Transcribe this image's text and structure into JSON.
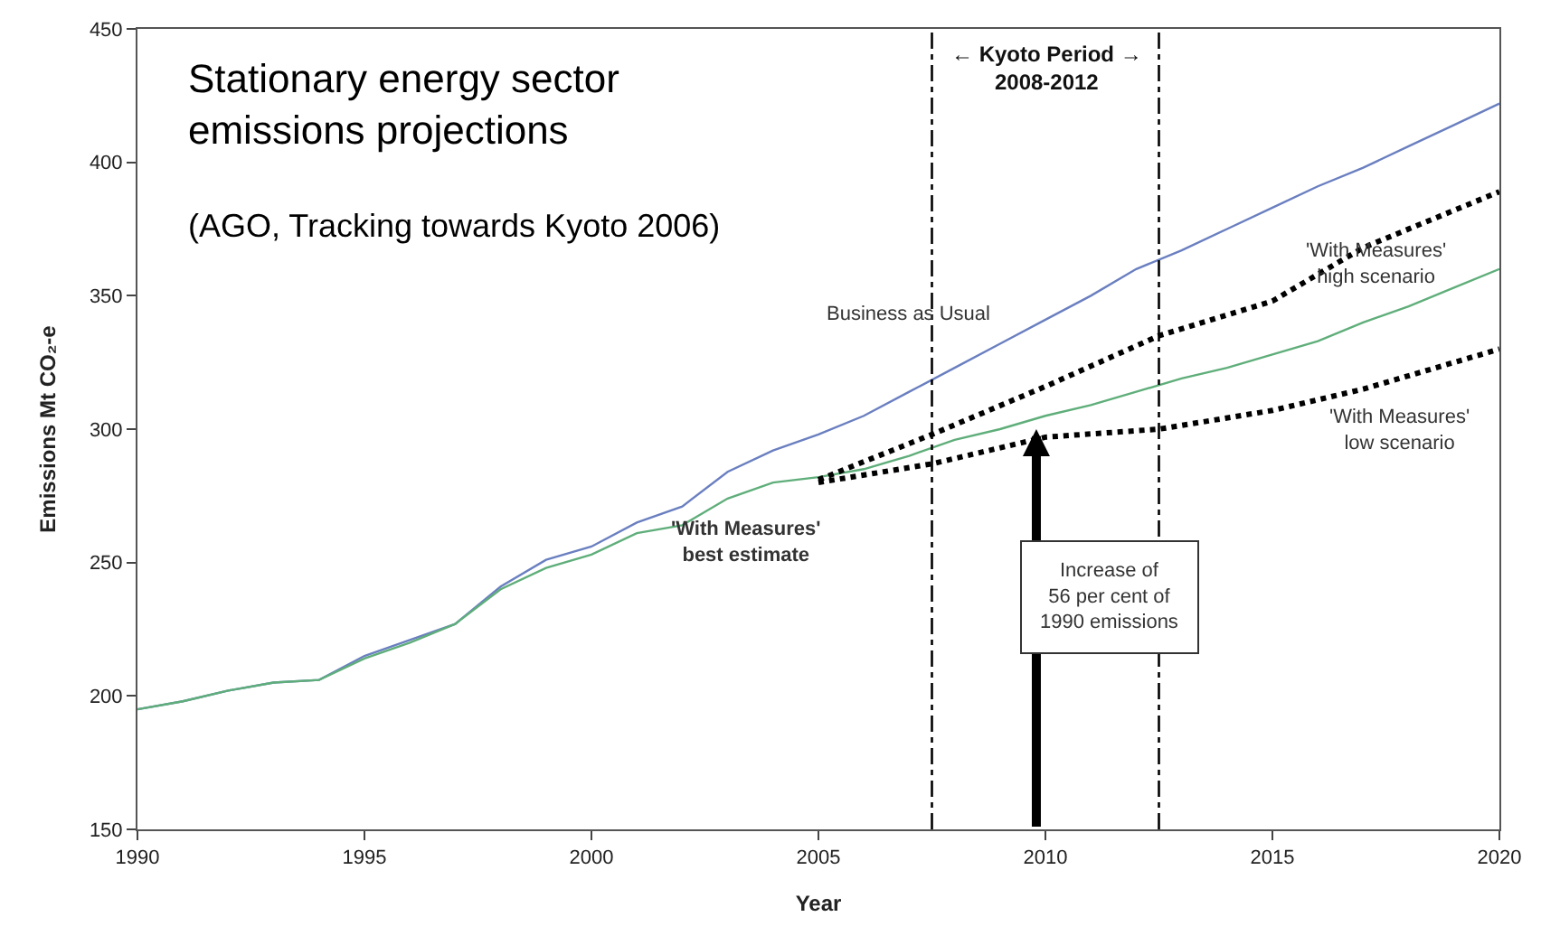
{
  "chart_data": {
    "type": "line",
    "title": "Stationary energy sector\nemissions projections",
    "subtitle": "(AGO, Tracking towards Kyoto 2006)",
    "xlabel": "Year",
    "ylabel": "Emissions Mt CO₂-e",
    "xlim": [
      1990,
      2020
    ],
    "xticks": [
      1990,
      1995,
      2000,
      2005,
      2010,
      2015,
      2020
    ],
    "ylim": [
      150,
      450
    ],
    "yticks": [
      150,
      200,
      250,
      300,
      350,
      400,
      450
    ],
    "legend": false,
    "series": [
      {
        "name": "Business as Usual",
        "color": "#6a7fc0",
        "line_style": "solid",
        "x": [
          1990,
          1991,
          1992,
          1993,
          1994,
          1995,
          1996,
          1997,
          1998,
          1999,
          2000,
          2001,
          2002,
          2003,
          2004,
          2005,
          2006,
          2007,
          2008,
          2009,
          2010,
          2011,
          2012,
          2013,
          2014,
          2015,
          2016,
          2017,
          2018,
          2019,
          2020
        ],
        "values": [
          195,
          198,
          202,
          205,
          206,
          215,
          221,
          227,
          241,
          251,
          256,
          265,
          271,
          284,
          292,
          298,
          305,
          314,
          323,
          332,
          341,
          350,
          360,
          367,
          375,
          383,
          391,
          398,
          406,
          414,
          422
        ]
      },
      {
        "name": "'With Measures'\nbest estimate",
        "color": "#5fae7a",
        "line_style": "solid",
        "x": [
          1990,
          1991,
          1992,
          1993,
          1994,
          1995,
          1996,
          1997,
          1998,
          1999,
          2000,
          2001,
          2002,
          2003,
          2004,
          2005,
          2006,
          2007,
          2008,
          2009,
          2010,
          2011,
          2012,
          2013,
          2014,
          2015,
          2016,
          2017,
          2018,
          2019,
          2020
        ],
        "values": [
          195,
          198,
          202,
          205,
          206,
          214,
          220,
          227,
          240,
          248,
          253,
          261,
          264,
          274,
          280,
          282,
          285,
          290,
          296,
          300,
          305,
          309,
          314,
          319,
          323,
          328,
          333,
          340,
          346,
          353,
          360
        ]
      },
      {
        "name": "'With Measures'\nhigh scenario",
        "color": "#000000",
        "line_style": "dotted",
        "x": [
          2005,
          2007.5,
          2010,
          2012.5,
          2015,
          2017,
          2020
        ],
        "values": [
          281,
          298,
          316,
          335,
          348,
          368,
          389
        ]
      },
      {
        "name": "'With Measures'\nlow scenario",
        "color": "#000000",
        "line_style": "dotted",
        "x": [
          2005,
          2007.5,
          2010,
          2012.5,
          2015,
          2017,
          2020
        ],
        "values": [
          280,
          287,
          297,
          300,
          307,
          315,
          330
        ]
      }
    ],
    "ref_lines": [
      {
        "axis": "x",
        "value": 2007.5,
        "line_style": "dashdot",
        "color": "#000000"
      },
      {
        "axis": "x",
        "value": 2012.5,
        "line_style": "dashdot",
        "color": "#000000"
      }
    ],
    "annotations": [
      "← Kyoto Period →\n2008-2012",
      "Increase of\n56 per cent of\n1990 emissions"
    ]
  }
}
